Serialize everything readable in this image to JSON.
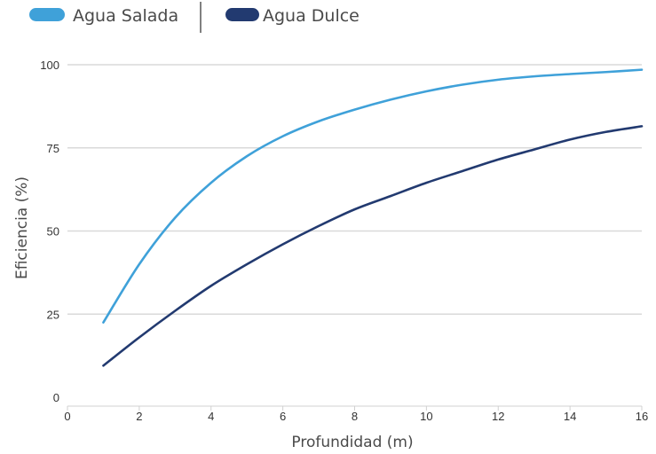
{
  "chart_data": {
    "type": "line",
    "title": "",
    "xlabel": "Profundidad (m)",
    "ylabel": "Eficiencia (%)",
    "xlim": [
      0,
      16
    ],
    "ylim": [
      0,
      100
    ],
    "x_ticks": [
      0,
      2,
      4,
      6,
      8,
      10,
      12,
      14,
      16
    ],
    "y_ticks": [
      0,
      25,
      50,
      75,
      100
    ],
    "grid": "horizontal",
    "legend": "top-left",
    "series": [
      {
        "name": "Agua Salada",
        "color": "#3fa1d9",
        "x": [
          1,
          2,
          3,
          4,
          5,
          6,
          7,
          8,
          9,
          10,
          11,
          12,
          13,
          14,
          15,
          16
        ],
        "y": [
          22.5,
          40,
          54,
          64.5,
          72.5,
          78.5,
          83,
          86.5,
          89.5,
          92,
          94,
          95.5,
          96.5,
          97.2,
          97.8,
          98.5
        ]
      },
      {
        "name": "Agua Dulce",
        "color": "#223a70",
        "x": [
          1,
          2,
          3,
          4,
          5,
          6,
          7,
          8,
          9,
          10,
          11,
          12,
          13,
          14,
          15,
          16
        ],
        "y": [
          9.5,
          18,
          26,
          33.5,
          40,
          46,
          51.5,
          56.5,
          60.5,
          64.5,
          68,
          71.5,
          74.5,
          77.5,
          79.8,
          81.5
        ]
      }
    ]
  }
}
